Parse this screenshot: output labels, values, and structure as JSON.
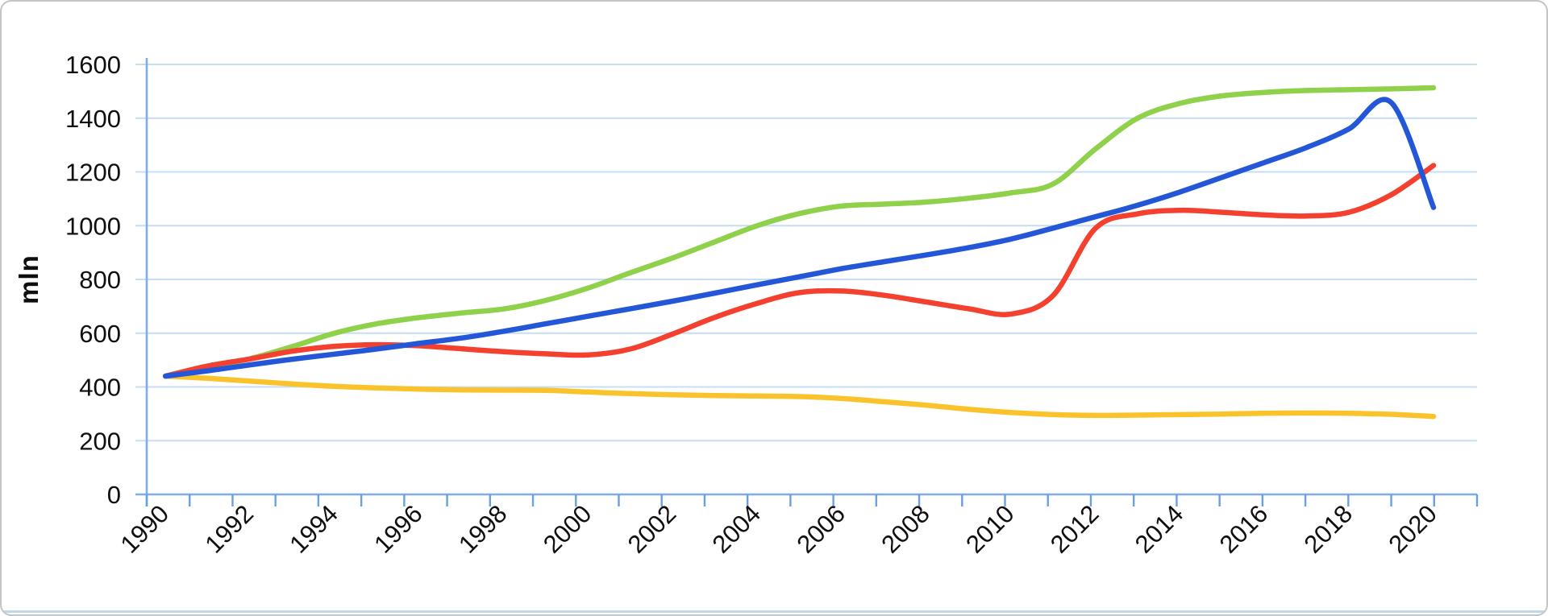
{
  "chart_data": {
    "type": "line",
    "title": "",
    "ylabel": "mln",
    "xlabel": "",
    "x": [
      1990,
      1991,
      1992,
      1993,
      1994,
      1995,
      1996,
      1997,
      1998,
      1999,
      2000,
      2001,
      2002,
      2003,
      2004,
      2005,
      2006,
      2007,
      2008,
      2009,
      2010,
      2011,
      2012,
      2013,
      2014,
      2015,
      2016,
      2017,
      2018,
      2019,
      2020
    ],
    "xtick_label_step": 2,
    "ylim": [
      0,
      1600
    ],
    "ytick_step": 200,
    "grid": true,
    "smooth": true,
    "legend": "none",
    "series": [
      {
        "name": "green-line",
        "color": "#8FD14A",
        "values": [
          440,
          475,
          505,
          550,
          600,
          635,
          658,
          675,
          690,
          722,
          768,
          825,
          880,
          940,
          1000,
          1045,
          1073,
          1080,
          1088,
          1102,
          1122,
          1155,
          1285,
          1400,
          1455,
          1483,
          1496,
          1503,
          1506,
          1509,
          1513
        ]
      },
      {
        "name": "red-line",
        "color": "#F4402E",
        "values": [
          440,
          478,
          504,
          533,
          551,
          557,
          553,
          542,
          531,
          523,
          519,
          541,
          597,
          659,
          711,
          751,
          757,
          741,
          716,
          691,
          671,
          740,
          990,
          1044,
          1057,
          1050,
          1040,
          1036,
          1050,
          1115,
          1224
        ]
      },
      {
        "name": "yellow-line",
        "color": "#FBC32B",
        "values": [
          440,
          432,
          422,
          411,
          402,
          396,
          392,
          389,
          388,
          387,
          381,
          375,
          371,
          368,
          366,
          364,
          357,
          345,
          332,
          317,
          305,
          297,
          294,
          295,
          297,
          299,
          302,
          303,
          302,
          298,
          290
        ]
      },
      {
        "name": "blue-line",
        "color": "#2357D8",
        "values": [
          440,
          460,
          482,
          503,
          522,
          541,
          562,
          582,
          607,
          635,
          663,
          691,
          719,
          749,
          780,
          810,
          840,
          866,
          891,
          918,
          950,
          991,
          1033,
          1076,
          1125,
          1180,
          1235,
          1291,
          1360,
          1458,
          1068
        ]
      }
    ]
  },
  "colors": {
    "grid": "#C6DDF4",
    "axis": "#7FAEE6",
    "tick": "#69A0E2",
    "label_text": "#0f0f0f",
    "bottom_rule": "#BDD7EE",
    "page_border": "#c3c6c9"
  }
}
